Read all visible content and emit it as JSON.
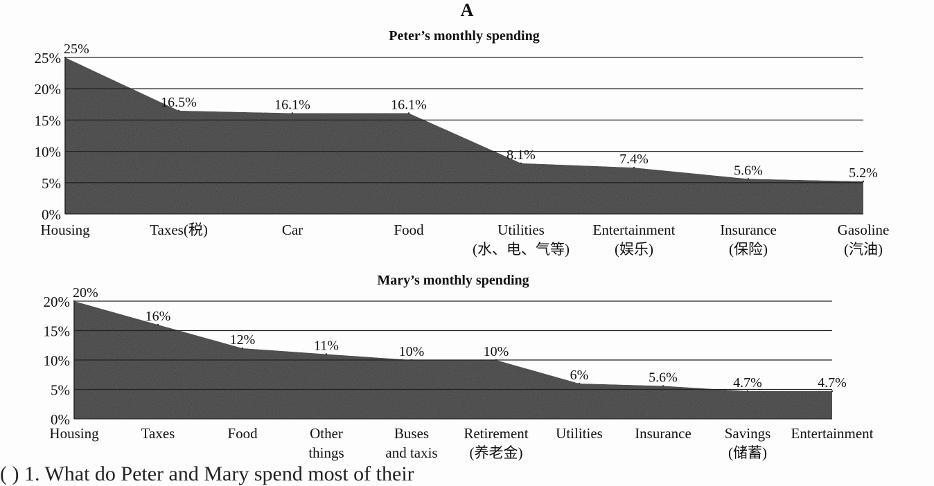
{
  "page": {
    "heading": "A",
    "footer_fragment": "(        )  1.  What do Peter and Mary spend most of their"
  },
  "colors": {
    "fill": "#5c5c5c",
    "grid": "#222222",
    "text": "#111111"
  },
  "chart_data": [
    {
      "type": "area",
      "title": "Peter’s monthly spending",
      "categories": [
        [
          "Housing"
        ],
        [
          "Taxes(税)"
        ],
        [
          "Car"
        ],
        [
          "Food"
        ],
        [
          "Utilities",
          "(水、电、气等)"
        ],
        [
          "Entertainment",
          "(娱乐)"
        ],
        [
          "Insurance",
          "(保险)"
        ],
        [
          "Gasoline",
          "(汽油)"
        ]
      ],
      "values": [
        25,
        16.5,
        16.1,
        16.1,
        8.1,
        7.4,
        5.6,
        5.2
      ],
      "data_labels": [
        "25%",
        "16.5%",
        "16.1%",
        "16.1%",
        "8.1%",
        "7.4%",
        "5.6%",
        "5.2%"
      ],
      "yticks": [
        "0%",
        "5%",
        "10%",
        "15%",
        "20%",
        "25%"
      ],
      "ylim": [
        0,
        25
      ],
      "grid": true
    },
    {
      "type": "area",
      "title": "Mary’s monthly spending",
      "categories": [
        [
          "Housing"
        ],
        [
          "Taxes"
        ],
        [
          "Food"
        ],
        [
          "Other",
          "things"
        ],
        [
          "Buses",
          "and taxis"
        ],
        [
          "Retirement",
          "(养老金)"
        ],
        [
          "Utilities"
        ],
        [
          "Insurance"
        ],
        [
          "Savings",
          "(储蓄)"
        ],
        [
          "Entertainment"
        ]
      ],
      "values": [
        20,
        16,
        12,
        11,
        10,
        10,
        6,
        5.6,
        4.7,
        4.7
      ],
      "data_labels": [
        "20%",
        "16%",
        "12%",
        "11%",
        "10%",
        "10%",
        "6%",
        "5.6%",
        "4.7%",
        "4.7%"
      ],
      "yticks": [
        "0%",
        "5%",
        "10%",
        "15%",
        "20%"
      ],
      "ylim": [
        0,
        20
      ],
      "grid": true
    }
  ]
}
